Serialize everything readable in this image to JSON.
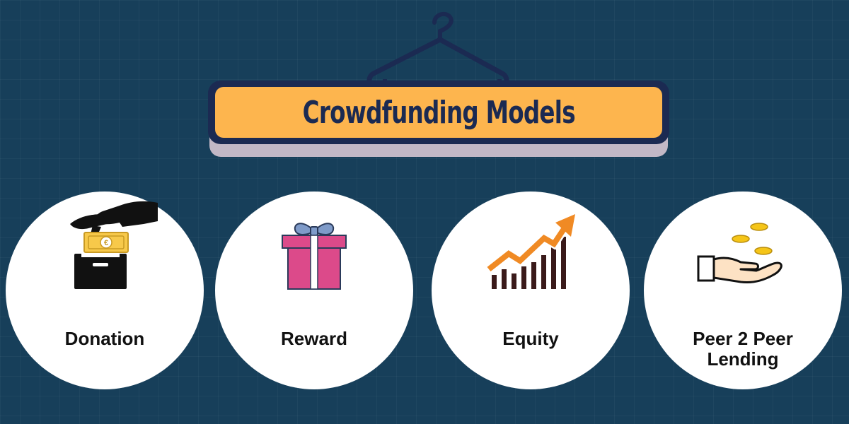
{
  "title": "Crowdfunding Models",
  "colors": {
    "background": "#173f5a",
    "banner_fill": "#fdb54e",
    "banner_border": "#1b2a52",
    "circle": "#ffffff",
    "arrow": "#f08a24",
    "gift_box": "#dc4a8a",
    "gift_bow": "#7f9bc9",
    "coins": "#f5c518"
  },
  "models": [
    {
      "label": "Donation",
      "icon": "donation-box-hand-euro-icon"
    },
    {
      "label": "Reward",
      "icon": "gift-box-icon"
    },
    {
      "label": "Equity",
      "icon": "growth-chart-arrow-icon"
    },
    {
      "label": "Peer 2 Peer Lending",
      "icon": "hand-coins-icon"
    }
  ]
}
